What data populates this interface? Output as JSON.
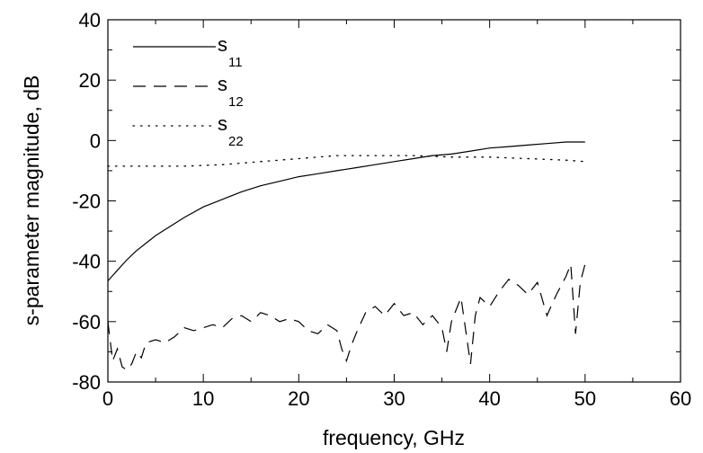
{
  "chart_data": {
    "type": "line",
    "title": "",
    "xlabel": "frequency, GHz",
    "ylabel": "s-parameter magnitude, dB",
    "xlim": [
      0,
      60
    ],
    "ylim": [
      -80,
      40
    ],
    "xticks": [
      0,
      10,
      20,
      30,
      40,
      50,
      60
    ],
    "yticks": [
      -80,
      -60,
      -40,
      -20,
      0,
      20,
      40
    ],
    "x_tick_labels": [
      "0",
      "10",
      "20",
      "30",
      "40",
      "50",
      "60"
    ],
    "y_tick_labels": [
      "-80",
      "-60",
      "-40",
      "-20",
      "0",
      "20",
      "40"
    ],
    "grid": false,
    "legend_position": "top-left",
    "series": [
      {
        "name": "s11",
        "label_main": "s",
        "label_sub": "11",
        "style": "solid",
        "x": [
          0,
          1,
          2,
          3,
          4,
          5,
          6,
          8,
          10,
          12,
          14,
          16,
          18,
          20,
          22,
          24,
          26,
          28,
          30,
          32,
          34,
          36,
          38,
          40,
          42,
          44,
          46,
          48,
          50
        ],
        "y": [
          -46.5,
          -43,
          -39.5,
          -36.5,
          -34,
          -31.5,
          -29.5,
          -25.5,
          -22,
          -19.5,
          -17,
          -15,
          -13.5,
          -12,
          -11,
          -10,
          -9,
          -8,
          -7,
          -6,
          -5,
          -4.5,
          -3.5,
          -2.5,
          -2,
          -1.5,
          -1,
          -0.5,
          -0.5
        ]
      },
      {
        "name": "s12",
        "label_main": "s",
        "label_sub": "12",
        "style": "dashed",
        "x": [
          0,
          0.5,
          1,
          1.5,
          2,
          2.5,
          3,
          3.5,
          4,
          5,
          6,
          7,
          8,
          9,
          10,
          11,
          12,
          13,
          14,
          15,
          16,
          17,
          18,
          19,
          20,
          21,
          22,
          23,
          24,
          24.5,
          25,
          25.5,
          26,
          27,
          28,
          29,
          30,
          31,
          32,
          33,
          34,
          35,
          35.5,
          36,
          37,
          38,
          38.5,
          39,
          40,
          41,
          42,
          43,
          44,
          45,
          46,
          47,
          48,
          48.5,
          49,
          49.5,
          50
        ],
        "y": [
          -60,
          -73,
          -69,
          -75,
          -76,
          -74,
          -70,
          -72,
          -67,
          -66,
          -67,
          -65,
          -62,
          -63,
          -62,
          -61,
          -62,
          -59,
          -58,
          -60,
          -57,
          -58,
          -60,
          -59,
          -60,
          -63,
          -64,
          -61,
          -63,
          -69,
          -73,
          -68,
          -64,
          -57,
          -55,
          -58,
          -54,
          -58,
          -57,
          -61,
          -58,
          -62,
          -70,
          -60,
          -52,
          -74,
          -58,
          -52,
          -55,
          -50,
          -46,
          -48,
          -51,
          -47,
          -58,
          -51,
          -45,
          -41,
          -64,
          -47,
          -41
        ]
      },
      {
        "name": "s22",
        "label_main": "s",
        "label_sub": "22",
        "style": "dotted",
        "x": [
          0,
          4,
          8,
          12,
          16,
          20,
          24,
          28,
          32,
          36,
          40,
          44,
          48,
          50
        ],
        "y": [
          -8.5,
          -8.5,
          -8.5,
          -8,
          -7,
          -6,
          -5,
          -5,
          -5,
          -5.5,
          -5.5,
          -6,
          -6.5,
          -7
        ]
      }
    ]
  }
}
